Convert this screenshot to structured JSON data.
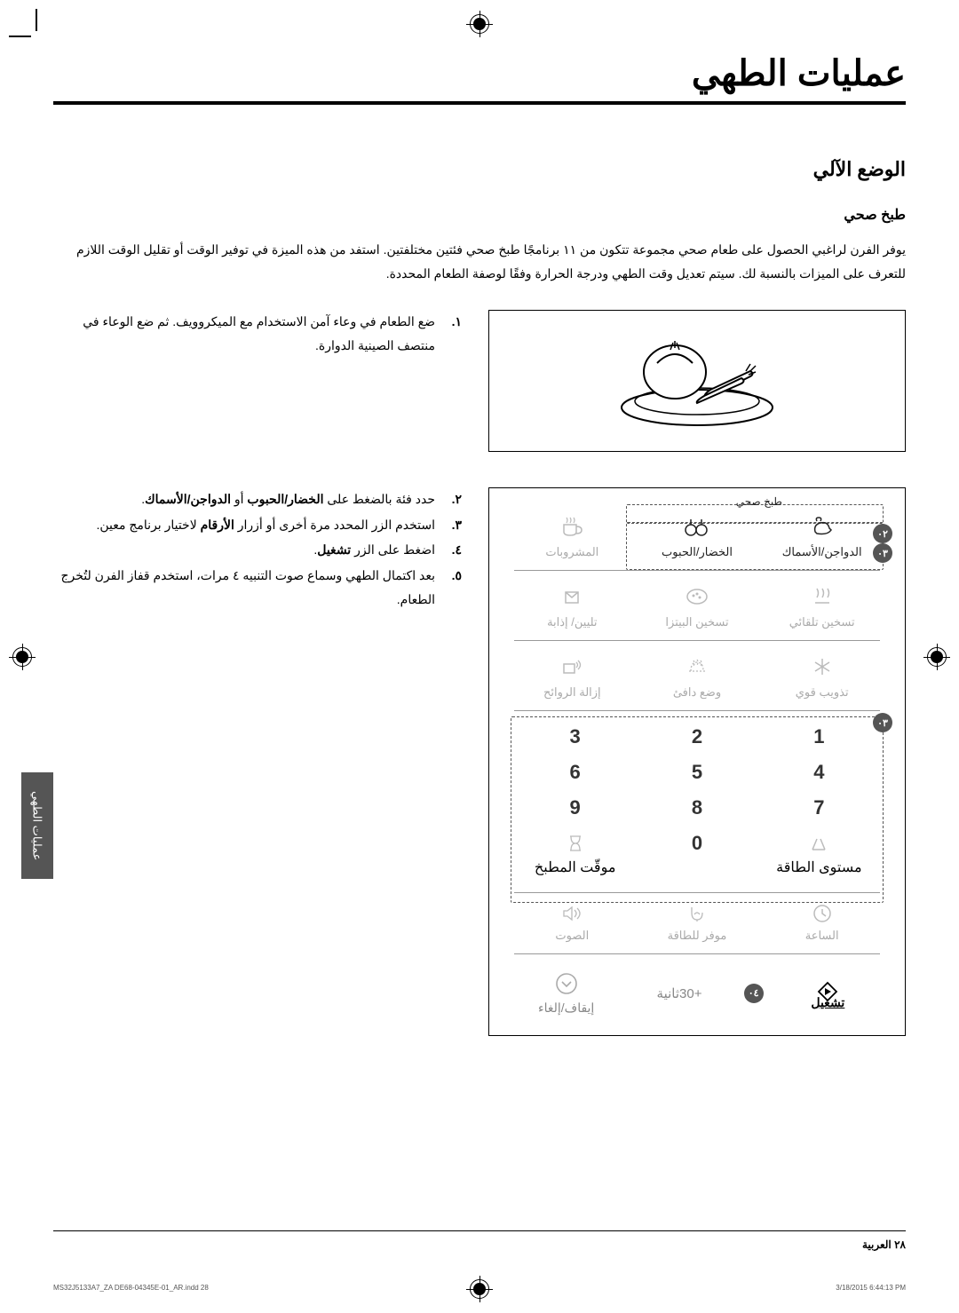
{
  "page": {
    "title": "عمليات الطهي",
    "section": "الوضع الآلي",
    "subsection": "طبخ صحي",
    "intro": "يوفر الفرن لراغبي الحصول على طعام صحي مجموعة تتكون من ١١ برنامجًا طبخ صحي فئتين مختلفتين. استفد من هذه الميزة في توفير الوقت أو تقليل الوقت اللازم للتعرف على الميزات بالنسبة لك. سيتم تعديل وقت الطهي ودرجة الحرارة وفقًا لوصفة الطعام المحددة.",
    "steps": [
      {
        "n": "١.",
        "text": "ضع الطعام في وعاء آمن الاستخدام مع الميكروويف. ثم ضع الوعاء في منتصف الصينية الدوارة."
      },
      {
        "n": "٢.",
        "text": "حدد فئة بالضغط على <b>الخضار/الحبوب</b> أو <b>الدواجن/الأسماك</b>."
      },
      {
        "n": "٣.",
        "text": "استخدم الزر المحدد مرة أخرى أو أزرار <b>الأرقام</b> لاختيار برنامج معين."
      },
      {
        "n": "٤.",
        "text": "اضغط على الزر <b>تشغيل</b>."
      },
      {
        "n": "٥.",
        "text": "بعد اكتمال الطهي وسماع صوت التنبيه ٤ مرات، استخدم قفاز الفرن لتُخرج الطعام."
      }
    ]
  },
  "panel": {
    "group_label": "طبخ صحي",
    "bullets": {
      "b2": "٠٢",
      "b3": "٠٣",
      "b3b": "٠٣",
      "b4": "٠٤"
    },
    "modes_row1": [
      {
        "label": "الدواجن/الأسماك",
        "icon": "poultry",
        "accent": true
      },
      {
        "label": "الخضار/الحبوب",
        "icon": "veg",
        "accent": true
      },
      {
        "label": "المشروبات",
        "icon": "cup",
        "accent": false
      }
    ],
    "modes_row2": [
      {
        "label": "تسخين تلقائي",
        "icon": "steam",
        "accent": false
      },
      {
        "label": "تسخين البيتزا",
        "icon": "pizza",
        "accent": false
      },
      {
        "label": "تليين/ إذابة",
        "icon": "soften",
        "accent": false
      }
    ],
    "modes_row3": [
      {
        "label": "تذويب قوي",
        "icon": "snow",
        "accent": false
      },
      {
        "label": "وضع دافئ",
        "icon": "warm",
        "accent": false
      },
      {
        "label": "إزالة الروائح",
        "icon": "deodor",
        "accent": false
      }
    ],
    "keypad": [
      [
        "1",
        "2",
        "3"
      ],
      [
        "4",
        "5",
        "6"
      ],
      [
        "7",
        "8",
        "9"
      ]
    ],
    "aux_row": [
      {
        "label": "مستوى الطاقة",
        "icon": "power"
      },
      {
        "label": "0",
        "icon": "",
        "is_zero": true
      },
      {
        "label": "موقّت المطبخ",
        "icon": "timer"
      }
    ],
    "aux_row2": [
      {
        "label": "الساعة",
        "icon": "clock"
      },
      {
        "label": "موفر للطاقة",
        "icon": "eco"
      },
      {
        "label": "الصوت",
        "icon": "sound"
      }
    ],
    "actions": {
      "start": {
        "label": "تشغيل",
        "icon": "play"
      },
      "plus30": {
        "label": "+30ثانية"
      },
      "stop": {
        "label": "إيقاف/إلغاء",
        "icon": "stop"
      }
    }
  },
  "side_tab": "عمليات الطهي",
  "footer": {
    "page_label": "٢٨  العربية",
    "file": "MS32J5133A7_ZA DE68-04345E-01_AR.indd   28",
    "timestamp": "3/18/2015   6:44:13 PM"
  },
  "style": {
    "accent_color": "#222222",
    "muted_color": "#aaaaaa",
    "border_color": "#000000",
    "tab_bg": "#555555",
    "grid_line": "#999999"
  }
}
